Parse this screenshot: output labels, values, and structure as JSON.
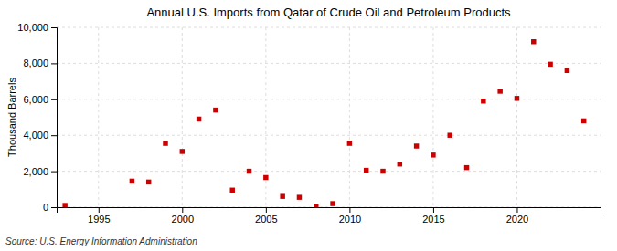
{
  "chart_data": {
    "type": "scatter",
    "title": "Annual U.S. Imports from Qatar of Crude Oil and Petroleum Products",
    "ylabel": "Thousand Barrels",
    "source": "Source: U.S. Energy Information Administration",
    "x": [
      1993,
      1997,
      1998,
      1999,
      2000,
      2001,
      2002,
      2003,
      2004,
      2005,
      2006,
      2007,
      2008,
      2009,
      2010,
      2011,
      2012,
      2013,
      2014,
      2015,
      2016,
      2017,
      2018,
      2019,
      2020,
      2021,
      2022,
      2023,
      2024
    ],
    "values": [
      100,
      1450,
      1400,
      3550,
      3100,
      4900,
      5400,
      950,
      2000,
      1650,
      600,
      550,
      50,
      200,
      3550,
      2050,
      2000,
      2400,
      3400,
      2900,
      4000,
      2200,
      5900,
      6450,
      6050,
      9200,
      7950,
      7600,
      4800
    ],
    "color": "#cc0000",
    "marker": "square",
    "xlim": [
      1992.5,
      2025
    ],
    "xticks": [
      1995,
      2000,
      2005,
      2010,
      2015,
      2020
    ],
    "ylim": [
      0,
      10000
    ],
    "yticks": [
      0,
      {
        "value": 2000,
        "label": "2,000"
      },
      {
        "value": 4000,
        "label": "4,000"
      },
      {
        "value": 6000,
        "label": "6,000"
      },
      {
        "value": 8000,
        "label": "8,000"
      },
      {
        "value": 10000,
        "label": "10,000"
      }
    ],
    "grid": true
  }
}
